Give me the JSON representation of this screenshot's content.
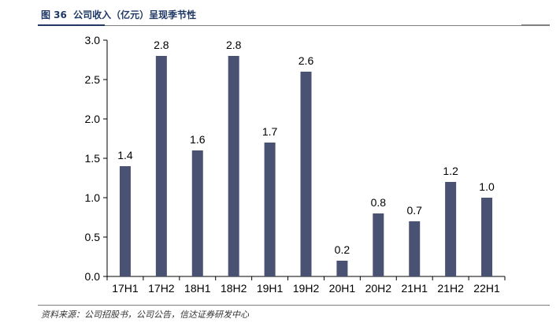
{
  "figure": {
    "number_label": "图 36",
    "title": "公司收入（亿元）呈现季节性",
    "source": "资料来源：公司招股书，公司公告，信达证券研发中心"
  },
  "chart_data": {
    "type": "bar",
    "title": "公司收入（亿元）呈现季节性",
    "xlabel": "",
    "ylabel": "",
    "categories": [
      "17H1",
      "17H2",
      "18H1",
      "18H2",
      "19H1",
      "19H2",
      "20H1",
      "20H2",
      "21H1",
      "21H2",
      "22H1"
    ],
    "values": [
      1.4,
      2.8,
      1.6,
      2.8,
      1.7,
      2.6,
      0.2,
      0.8,
      0.7,
      1.2,
      1.0
    ],
    "value_labels": [
      "1.4",
      "2.8",
      "1.6",
      "2.8",
      "1.7",
      "2.6",
      "0.2",
      "0.8",
      "0.7",
      "1.2",
      "1.0"
    ],
    "ylim": [
      0,
      3.0
    ],
    "yticks": [
      0,
      0.5,
      1.0,
      1.5,
      2.0,
      2.5,
      3.0
    ],
    "ytick_labels": [
      "0.0",
      "0.5",
      "1.0",
      "1.5",
      "2.0",
      "2.5",
      "3.0"
    ],
    "grid": false,
    "legend": "none",
    "colors": {
      "bar": "#4a5274",
      "axis": "#000000"
    }
  }
}
